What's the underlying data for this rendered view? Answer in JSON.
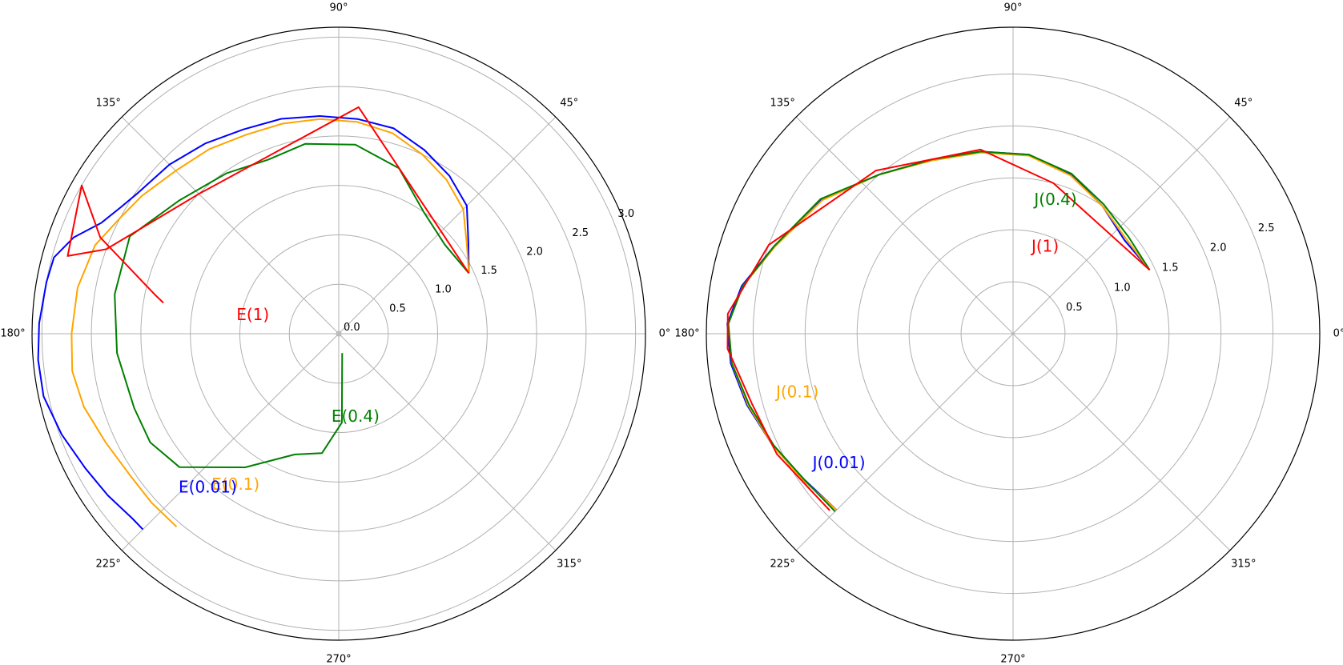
{
  "chart_data": [
    {
      "type": "line",
      "subtype": "polar",
      "angle_ticks": [
        "0°",
        "45°",
        "90°",
        "135°",
        "180°",
        "225°",
        "270°",
        "315°"
      ],
      "radial_ticks": [
        "0.0",
        "0.5",
        "1.0",
        "1.5",
        "2.0",
        "2.5",
        "3.0"
      ],
      "rlim": [
        0,
        3.1
      ],
      "grid": true,
      "series": [
        {
          "name": "E(0.01)",
          "color": "#0000ff",
          "points_theta_deg_r": [
            [
              25,
              1.45
            ],
            [
              35,
              1.6
            ],
            [
              45,
              1.83
            ],
            [
              55,
              1.95
            ],
            [
              65,
              2.05
            ],
            [
              75,
              2.15
            ],
            [
              85,
              2.18
            ],
            [
              95,
              2.21
            ],
            [
              105,
              2.25
            ],
            [
              115,
              2.28
            ],
            [
              125,
              2.35
            ],
            [
              135,
              2.42
            ],
            [
              145,
              2.48
            ],
            [
              150,
              2.55
            ],
            [
              155,
              2.65
            ],
            [
              160,
              2.85
            ],
            [
              165,
              2.98
            ],
            [
              170,
              3.0
            ],
            [
              178,
              3.03
            ],
            [
              185,
              3.05
            ],
            [
              192,
              3.05
            ],
            [
              200,
              2.98
            ],
            [
              208,
              2.9
            ],
            [
              215,
              2.85
            ],
            [
              222,
              2.8
            ],
            [
              225,
              2.8
            ]
          ]
        },
        {
          "name": "E(0.1)",
          "color": "#ffa500",
          "points_theta_deg_r": [
            [
              25,
              1.45
            ],
            [
              35,
              1.58
            ],
            [
              45,
              1.78
            ],
            [
              55,
              1.9
            ],
            [
              65,
              2.0
            ],
            [
              75,
              2.1
            ],
            [
              85,
              2.15
            ],
            [
              95,
              2.18
            ],
            [
              105,
              2.2
            ],
            [
              115,
              2.22
            ],
            [
              125,
              2.28
            ],
            [
              135,
              2.33
            ],
            [
              145,
              2.43
            ],
            [
              152,
              2.5
            ],
            [
              160,
              2.62
            ],
            [
              170,
              2.68
            ],
            [
              180,
              2.7
            ],
            [
              188,
              2.72
            ],
            [
              196,
              2.68
            ],
            [
              205,
              2.6
            ],
            [
              214,
              2.55
            ],
            [
              222,
              2.55
            ],
            [
              230,
              2.55
            ]
          ]
        },
        {
          "name": "E(0.4)",
          "color": "#008000",
          "points_theta_deg_r": [
            [
              25,
              1.45
            ],
            [
              40,
              1.4
            ],
            [
              55,
              1.5
            ],
            [
              70,
              1.78
            ],
            [
              85,
              1.92
            ],
            [
              100,
              1.95
            ],
            [
              112,
              1.9
            ],
            [
              125,
              1.98
            ],
            [
              140,
              2.1
            ],
            [
              155,
              2.33
            ],
            [
              170,
              2.3
            ],
            [
              185,
              2.25
            ],
            [
              200,
              2.2
            ],
            [
              210,
              2.2
            ],
            [
              220,
              2.1
            ],
            [
              235,
              1.65
            ],
            [
              250,
              1.3
            ],
            [
              262,
              1.22
            ],
            [
              272,
              0.9
            ],
            [
              280,
              0.2
            ]
          ]
        },
        {
          "name": "E(1)",
          "color": "#ff0000",
          "points_theta_deg_r": [
            [
              25,
              1.45
            ],
            [
              85,
              2.3
            ],
            [
              135,
              2.0
            ],
            [
              160,
              2.5
            ],
            [
              164,
              2.85
            ],
            [
              150,
              3.0
            ],
            [
              158,
              2.6
            ],
            [
              168,
              1.9
            ],
            [
              170,
              1.8
            ]
          ]
        }
      ],
      "annotations": [
        {
          "text": "E(1)",
          "color": "#ff0000",
          "theta_deg": 170,
          "r": 1.05
        },
        {
          "text": "E(0.4)",
          "color": "#008000",
          "theta_deg": 265,
          "r": 0.85
        },
        {
          "text": "E(0.1)",
          "color": "#ffa500",
          "theta_deg": 230,
          "r": 2.0
        },
        {
          "text": "E(0.01)",
          "color": "#0000ff",
          "theta_deg": 224,
          "r": 2.25
        }
      ]
    },
    {
      "type": "line",
      "subtype": "polar",
      "angle_ticks": [
        "0°",
        "45°",
        "90°",
        "135°",
        "180°",
        "225°",
        "270°",
        "315°"
      ],
      "radial_ticks": [
        "0.5",
        "1.0",
        "1.5",
        "2.0",
        "2.5"
      ],
      "rlim": [
        0,
        2.95
      ],
      "grid": true,
      "series": [
        {
          "name": "J(0.01)",
          "color": "#0000ff",
          "points_theta_deg_r": [
            [
              25,
              1.45
            ],
            [
              40,
              1.4
            ],
            [
              55,
              1.5
            ],
            [
              70,
              1.63
            ],
            [
              85,
              1.73
            ],
            [
              100,
              1.78
            ],
            [
              115,
              1.85
            ],
            [
              130,
              2.0
            ],
            [
              145,
              2.25
            ],
            [
              160,
              2.45
            ],
            [
              170,
              2.65
            ],
            [
              178,
              2.75
            ],
            [
              186,
              2.73
            ],
            [
              195,
              2.65
            ],
            [
              205,
              2.55
            ],
            [
              215,
              2.45
            ],
            [
              225,
              2.4
            ]
          ]
        },
        {
          "name": "J(0.1)",
          "color": "#ffa500",
          "points_theta_deg_r": [
            [
              25,
              1.45
            ],
            [
              40,
              1.42
            ],
            [
              55,
              1.5
            ],
            [
              70,
              1.62
            ],
            [
              85,
              1.72
            ],
            [
              100,
              1.77
            ],
            [
              115,
              1.84
            ],
            [
              130,
              2.0
            ],
            [
              145,
              2.24
            ],
            [
              160,
              2.44
            ],
            [
              170,
              2.64
            ],
            [
              178,
              2.74
            ],
            [
              186,
              2.72
            ],
            [
              195,
              2.64
            ],
            [
              205,
              2.55
            ],
            [
              215,
              2.46
            ],
            [
              225,
              2.4
            ]
          ]
        },
        {
          "name": "J(0.4)",
          "color": "#008000",
          "points_theta_deg_r": [
            [
              25,
              1.45
            ],
            [
              40,
              1.45
            ],
            [
              55,
              1.52
            ],
            [
              70,
              1.64
            ],
            [
              85,
              1.73
            ],
            [
              100,
              1.78
            ],
            [
              115,
              1.85
            ],
            [
              130,
              2.0
            ],
            [
              145,
              2.26
            ],
            [
              160,
              2.45
            ],
            [
              170,
              2.64
            ],
            [
              178,
              2.74
            ],
            [
              186,
              2.72
            ],
            [
              195,
              2.63
            ],
            [
              205,
              2.54
            ],
            [
              215,
              2.45
            ],
            [
              225,
              2.42
            ]
          ]
        },
        {
          "name": "J(1)",
          "color": "#ff0000",
          "points_theta_deg_r": [
            [
              25,
              1.45
            ],
            [
              75,
              1.5
            ],
            [
              100,
              1.8
            ],
            [
              130,
              2.05
            ],
            [
              160,
              2.5
            ],
            [
              176,
              2.75
            ],
            [
              183,
              2.75
            ],
            [
              195,
              2.6
            ],
            [
              207,
              2.55
            ],
            [
              224,
              2.45
            ]
          ]
        }
      ],
      "annotations": [
        {
          "text": "J(0.4)",
          "color": "#008000",
          "theta_deg": 81,
          "r": 1.3
        },
        {
          "text": "J(1)",
          "color": "#ff0000",
          "theta_deg": 78,
          "r": 0.85
        },
        {
          "text": "J(0.1)",
          "color": "#ffa500",
          "theta_deg": 194,
          "r": 2.35
        },
        {
          "text": "J(0.01)",
          "color": "#0000ff",
          "theta_deg": 213,
          "r": 2.3
        }
      ]
    }
  ]
}
